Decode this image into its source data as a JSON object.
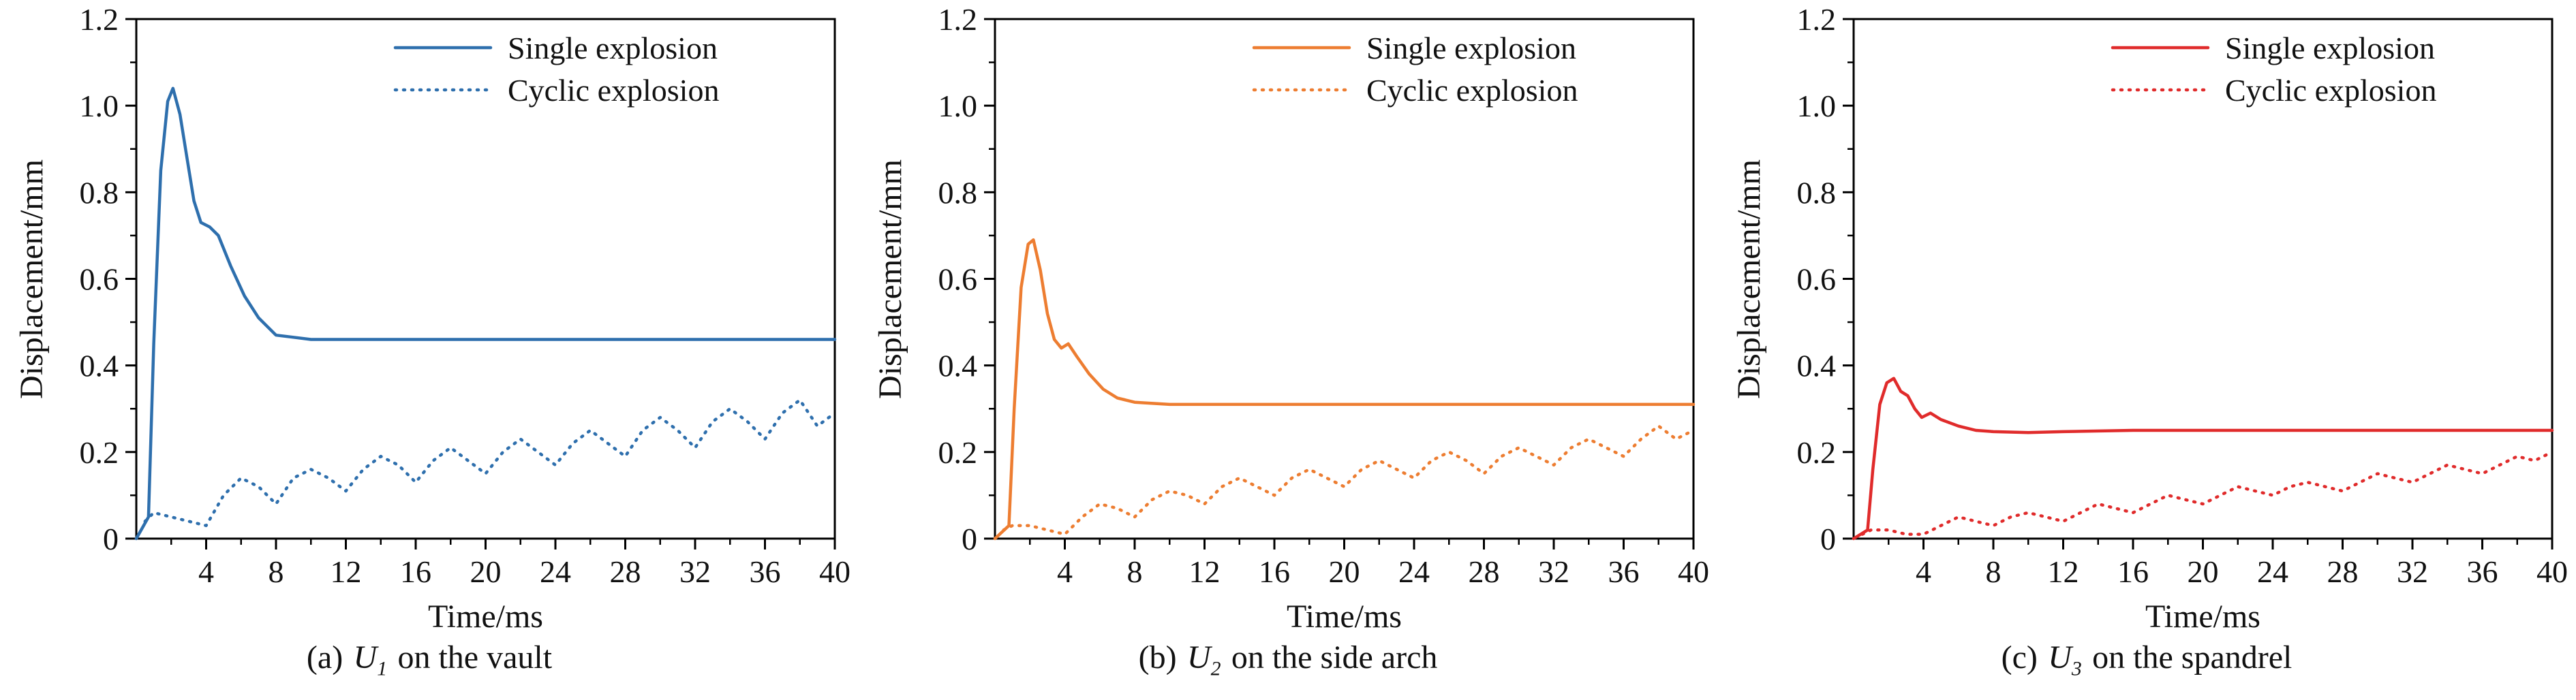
{
  "chart_data": [
    {
      "type": "line",
      "xlabel": "Time/ms",
      "ylabel": "Displacement/mm",
      "xlim": [
        0,
        40
      ],
      "ylim": [
        0,
        1.2
      ],
      "xticks": [
        4,
        8,
        12,
        16,
        20,
        24,
        28,
        32,
        36,
        40
      ],
      "yticks": [
        0,
        0.2,
        0.4,
        0.6,
        0.8,
        1.0,
        1.2
      ],
      "ytick_labels": [
        "0",
        "0.2",
        "0.4",
        "0.6",
        "0.8",
        "1.0",
        "1.2"
      ],
      "color": "#2e6fad",
      "legend": [
        "Single explosion",
        "Cyclic explosion"
      ],
      "series": [
        {
          "name": "Single explosion",
          "dash": "solid",
          "x": [
            0,
            0.7,
            1.0,
            1.4,
            1.8,
            2.1,
            2.5,
            2.9,
            3.3,
            3.7,
            4.2,
            4.7,
            5.4,
            6.2,
            7.0,
            8.0,
            9.0,
            10,
            12,
            16,
            20,
            24,
            28,
            32,
            36,
            40
          ],
          "y": [
            0,
            0.05,
            0.45,
            0.85,
            1.01,
            1.04,
            0.98,
            0.88,
            0.78,
            0.73,
            0.72,
            0.7,
            0.63,
            0.56,
            0.51,
            0.47,
            0.465,
            0.46,
            0.46,
            0.46,
            0.46,
            0.46,
            0.46,
            0.46,
            0.46,
            0.46
          ]
        },
        {
          "name": "Cyclic explosion",
          "dash": "dotted",
          "x": [
            0.5,
            1,
            2,
            3,
            4,
            5,
            6,
            7,
            8,
            9,
            10,
            11,
            12,
            13,
            14,
            15,
            16,
            17,
            18,
            19,
            20,
            21,
            22,
            23,
            24,
            25,
            26,
            27,
            28,
            29,
            30,
            31,
            32,
            33,
            34,
            35,
            36,
            37,
            38,
            39,
            40
          ],
          "y": [
            0.04,
            0.06,
            0.05,
            0.04,
            0.03,
            0.1,
            0.14,
            0.12,
            0.08,
            0.14,
            0.16,
            0.14,
            0.11,
            0.16,
            0.19,
            0.17,
            0.13,
            0.18,
            0.21,
            0.18,
            0.15,
            0.2,
            0.23,
            0.2,
            0.17,
            0.22,
            0.25,
            0.22,
            0.19,
            0.25,
            0.28,
            0.25,
            0.21,
            0.27,
            0.3,
            0.27,
            0.23,
            0.29,
            0.32,
            0.26,
            0.29
          ]
        }
      ],
      "caption": {
        "index": "(a)",
        "symbol": "U",
        "sub": "1",
        "rest": "on the vault"
      }
    },
    {
      "type": "line",
      "xlabel": "Time/ms",
      "ylabel": "Displacement/mm",
      "xlim": [
        0,
        40
      ],
      "ylim": [
        0,
        1.2
      ],
      "xticks": [
        4,
        8,
        12,
        16,
        20,
        24,
        28,
        32,
        36,
        40
      ],
      "yticks": [
        0,
        0.2,
        0.4,
        0.6,
        0.8,
        1.0,
        1.2
      ],
      "ytick_labels": [
        "0",
        "0.2",
        "0.4",
        "0.6",
        "0.8",
        "1.0",
        "1.2"
      ],
      "color": "#ed7d31",
      "legend": [
        "Single explosion",
        "Cyclic explosion"
      ],
      "series": [
        {
          "name": "Single explosion",
          "dash": "solid",
          "x": [
            0,
            0.8,
            1.1,
            1.5,
            1.9,
            2.2,
            2.6,
            3.0,
            3.4,
            3.8,
            4.2,
            4.7,
            5.4,
            6.2,
            7.0,
            8.0,
            10,
            12,
            16,
            20,
            24,
            28,
            32,
            36,
            40
          ],
          "y": [
            0,
            0.03,
            0.3,
            0.58,
            0.68,
            0.69,
            0.62,
            0.52,
            0.46,
            0.44,
            0.45,
            0.42,
            0.38,
            0.345,
            0.325,
            0.315,
            0.31,
            0.31,
            0.31,
            0.31,
            0.31,
            0.31,
            0.31,
            0.31,
            0.31
          ]
        },
        {
          "name": "Cyclic explosion",
          "dash": "dotted",
          "x": [
            0.5,
            1,
            2,
            3,
            4,
            5,
            6,
            7,
            8,
            9,
            10,
            11,
            12,
            13,
            14,
            15,
            16,
            17,
            18,
            19,
            20,
            21,
            22,
            23,
            24,
            25,
            26,
            27,
            28,
            29,
            30,
            31,
            32,
            33,
            34,
            35,
            36,
            37,
            38,
            39,
            40
          ],
          "y": [
            0.02,
            0.03,
            0.03,
            0.02,
            0.01,
            0.05,
            0.08,
            0.07,
            0.05,
            0.09,
            0.11,
            0.1,
            0.08,
            0.12,
            0.14,
            0.12,
            0.1,
            0.14,
            0.16,
            0.14,
            0.12,
            0.16,
            0.18,
            0.16,
            0.14,
            0.18,
            0.2,
            0.18,
            0.15,
            0.19,
            0.21,
            0.19,
            0.17,
            0.21,
            0.23,
            0.21,
            0.19,
            0.23,
            0.26,
            0.23,
            0.25
          ]
        }
      ],
      "caption": {
        "index": "(b)",
        "symbol": "U",
        "sub": "2",
        "rest": "on the side arch"
      }
    },
    {
      "type": "line",
      "xlabel": "Time/ms",
      "ylabel": "Displacement/mm",
      "xlim": [
        0,
        40
      ],
      "ylim": [
        0,
        1.2
      ],
      "xticks": [
        4,
        8,
        12,
        16,
        20,
        24,
        28,
        32,
        36,
        40
      ],
      "yticks": [
        0,
        0.2,
        0.4,
        0.6,
        0.8,
        1.0,
        1.2
      ],
      "ytick_labels": [
        "0",
        "0.2",
        "0.4",
        "0.6",
        "0.8",
        "1.0",
        "1.2"
      ],
      "color": "#e02b2b",
      "legend": [
        "Single explosion",
        "Cyclic explosion"
      ],
      "series": [
        {
          "name": "Single explosion",
          "dash": "solid",
          "x": [
            0,
            0.8,
            1.1,
            1.5,
            1.9,
            2.3,
            2.7,
            3.1,
            3.5,
            3.9,
            4.4,
            5.0,
            6.0,
            7.0,
            8.0,
            10,
            12,
            16,
            20,
            24,
            28,
            32,
            36,
            40
          ],
          "y": [
            0,
            0.02,
            0.16,
            0.31,
            0.36,
            0.37,
            0.34,
            0.33,
            0.3,
            0.28,
            0.29,
            0.275,
            0.26,
            0.25,
            0.247,
            0.245,
            0.247,
            0.25,
            0.25,
            0.25,
            0.25,
            0.25,
            0.25,
            0.25
          ]
        },
        {
          "name": "Cyclic explosion",
          "dash": "dotted",
          "x": [
            0.5,
            1,
            2,
            3,
            4,
            5,
            6,
            7,
            8,
            9,
            10,
            11,
            12,
            13,
            14,
            15,
            16,
            17,
            18,
            19,
            20,
            21,
            22,
            23,
            24,
            25,
            26,
            27,
            28,
            29,
            30,
            31,
            32,
            33,
            34,
            35,
            36,
            37,
            38,
            39,
            40
          ],
          "y": [
            0.01,
            0.02,
            0.02,
            0.01,
            0.01,
            0.03,
            0.05,
            0.04,
            0.03,
            0.05,
            0.06,
            0.05,
            0.04,
            0.06,
            0.08,
            0.07,
            0.06,
            0.08,
            0.1,
            0.09,
            0.08,
            0.1,
            0.12,
            0.11,
            0.1,
            0.12,
            0.13,
            0.12,
            0.11,
            0.13,
            0.15,
            0.14,
            0.13,
            0.15,
            0.17,
            0.16,
            0.15,
            0.17,
            0.19,
            0.18,
            0.2
          ]
        }
      ],
      "caption": {
        "index": "(c)",
        "symbol": "U",
        "sub": "3",
        "rest": "on the spandrel"
      }
    }
  ],
  "style": {
    "axis_color": "#000000"
  }
}
